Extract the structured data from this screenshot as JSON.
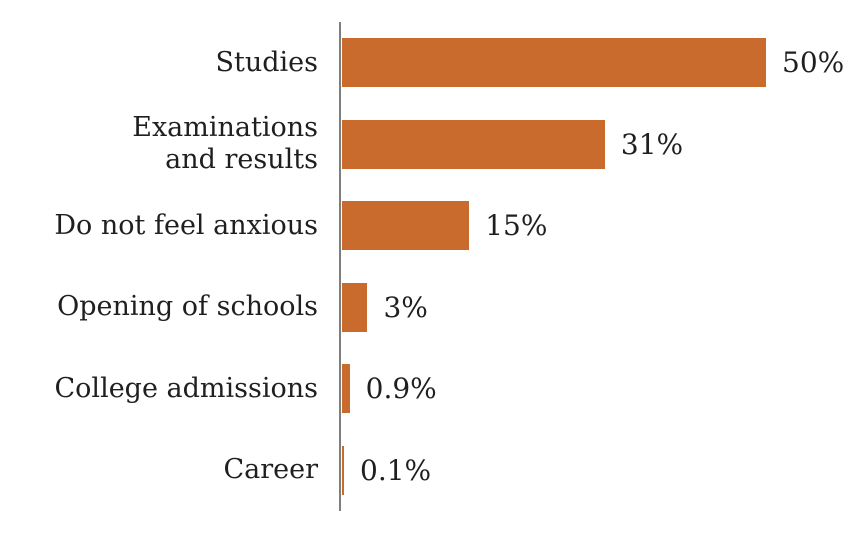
{
  "chart_data": {
    "type": "bar",
    "orientation": "horizontal",
    "title": "",
    "xlabel": "",
    "ylabel": "",
    "categories": [
      "Studies",
      "Examinations\nand results",
      "Do not feel anxious",
      "Opening of schools",
      "College admissions",
      "Career"
    ],
    "values": [
      50,
      31,
      15,
      3,
      0.9,
      0.1
    ],
    "value_labels": [
      "50%",
      "31%",
      "15%",
      "3%",
      "0.9%",
      "0.1%"
    ],
    "xlim": [
      0,
      50
    ],
    "grid": false,
    "legend": false,
    "bar_color": "#CA6B2E",
    "axis_color": "#7F7F7F",
    "text_color": "#1F1F1F"
  }
}
